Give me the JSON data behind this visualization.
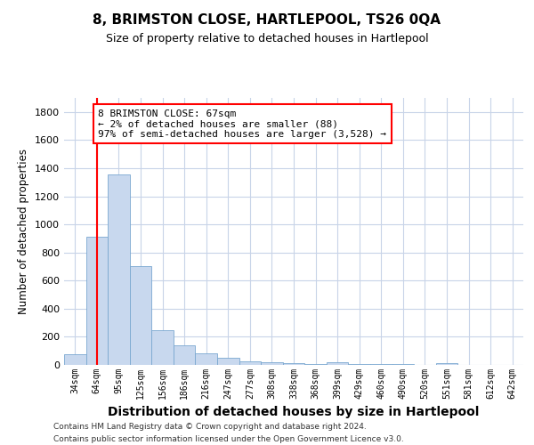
{
  "title": "8, BRIMSTON CLOSE, HARTLEPOOL, TS26 0QA",
  "subtitle": "Size of property relative to detached houses in Hartlepool",
  "xlabel": "Distribution of detached houses by size in Hartlepool",
  "ylabel": "Number of detached properties",
  "categories": [
    "34sqm",
    "64sqm",
    "95sqm",
    "125sqm",
    "156sqm",
    "186sqm",
    "216sqm",
    "247sqm",
    "277sqm",
    "308sqm",
    "338sqm",
    "368sqm",
    "399sqm",
    "429sqm",
    "460sqm",
    "490sqm",
    "520sqm",
    "551sqm",
    "581sqm",
    "612sqm",
    "642sqm"
  ],
  "values": [
    75,
    910,
    1355,
    700,
    250,
    140,
    80,
    50,
    25,
    20,
    10,
    5,
    20,
    5,
    5,
    5,
    0,
    15,
    0,
    0,
    0
  ],
  "bar_color": "#c8d8ee",
  "bar_edge_color": "#7aa8d0",
  "grid_color": "#c8d4e8",
  "annotation_text": "8 BRIMSTON CLOSE: 67sqm\n← 2% of detached houses are smaller (88)\n97% of semi-detached houses are larger (3,528) →",
  "annotation_box_color": "white",
  "annotation_box_edge_color": "red",
  "vline_x": 1.0,
  "footer_line1": "Contains HM Land Registry data © Crown copyright and database right 2024.",
  "footer_line2": "Contains public sector information licensed under the Open Government Licence v3.0.",
  "ylim": [
    0,
    1900
  ],
  "background_color": "#ffffff",
  "title_fontsize": 11,
  "subtitle_fontsize": 9
}
